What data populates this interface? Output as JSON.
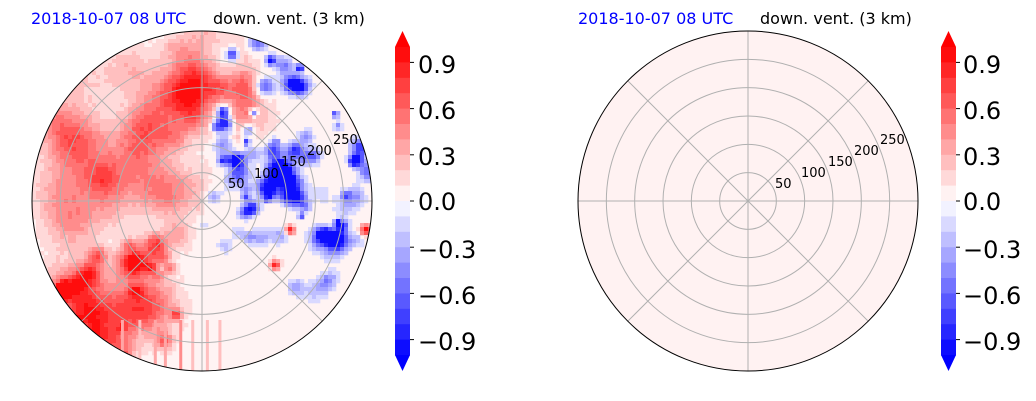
{
  "chart_data": [
    {
      "type": "heatmap",
      "projection": "polar",
      "title_left": "2018-10-07 08 UTC",
      "title_right": "down. vent. (3 km)",
      "radial_ticks": [
        "50",
        "100",
        "150",
        "200",
        "250"
      ],
      "radial_values": [
        50,
        100,
        150,
        200,
        250
      ],
      "radial_max": 300,
      "colormap": "bwr",
      "colorbar": {
        "vmin": -1.0,
        "vmax": 1.0,
        "levels": 20,
        "extend": "both",
        "ticks": [
          -0.9,
          -0.6,
          -0.3,
          0.0,
          0.3,
          0.6,
          0.9
        ],
        "tick_labels": [
          "−0.9",
          "−0.6",
          "−0.3",
          "0.0",
          "0.3",
          "0.6",
          "0.9"
        ]
      },
      "field": "noisy mixed positive and negative values, strong negative band in upper-right quadrant, strong positive patch lower-left edge",
      "grid": true
    },
    {
      "type": "heatmap",
      "projection": "polar",
      "title_left": "2018-10-07 08 UTC",
      "title_right": "down. vent. (3 km)",
      "radial_ticks": [
        "50",
        "100",
        "150",
        "200",
        "250"
      ],
      "radial_values": [
        50,
        100,
        150,
        200,
        250
      ],
      "radial_max": 300,
      "colormap": "bwr",
      "colorbar": {
        "vmin": -1.0,
        "vmax": 1.0,
        "levels": 20,
        "extend": "both",
        "ticks": [
          -0.9,
          -0.6,
          -0.3,
          0.0,
          0.3,
          0.6,
          0.9
        ],
        "tick_labels": [
          "−0.9",
          "−0.6",
          "−0.3",
          "0.0",
          "0.3",
          "0.6",
          "0.9"
        ]
      },
      "field_uniform_value": 0.02,
      "grid": true
    }
  ]
}
